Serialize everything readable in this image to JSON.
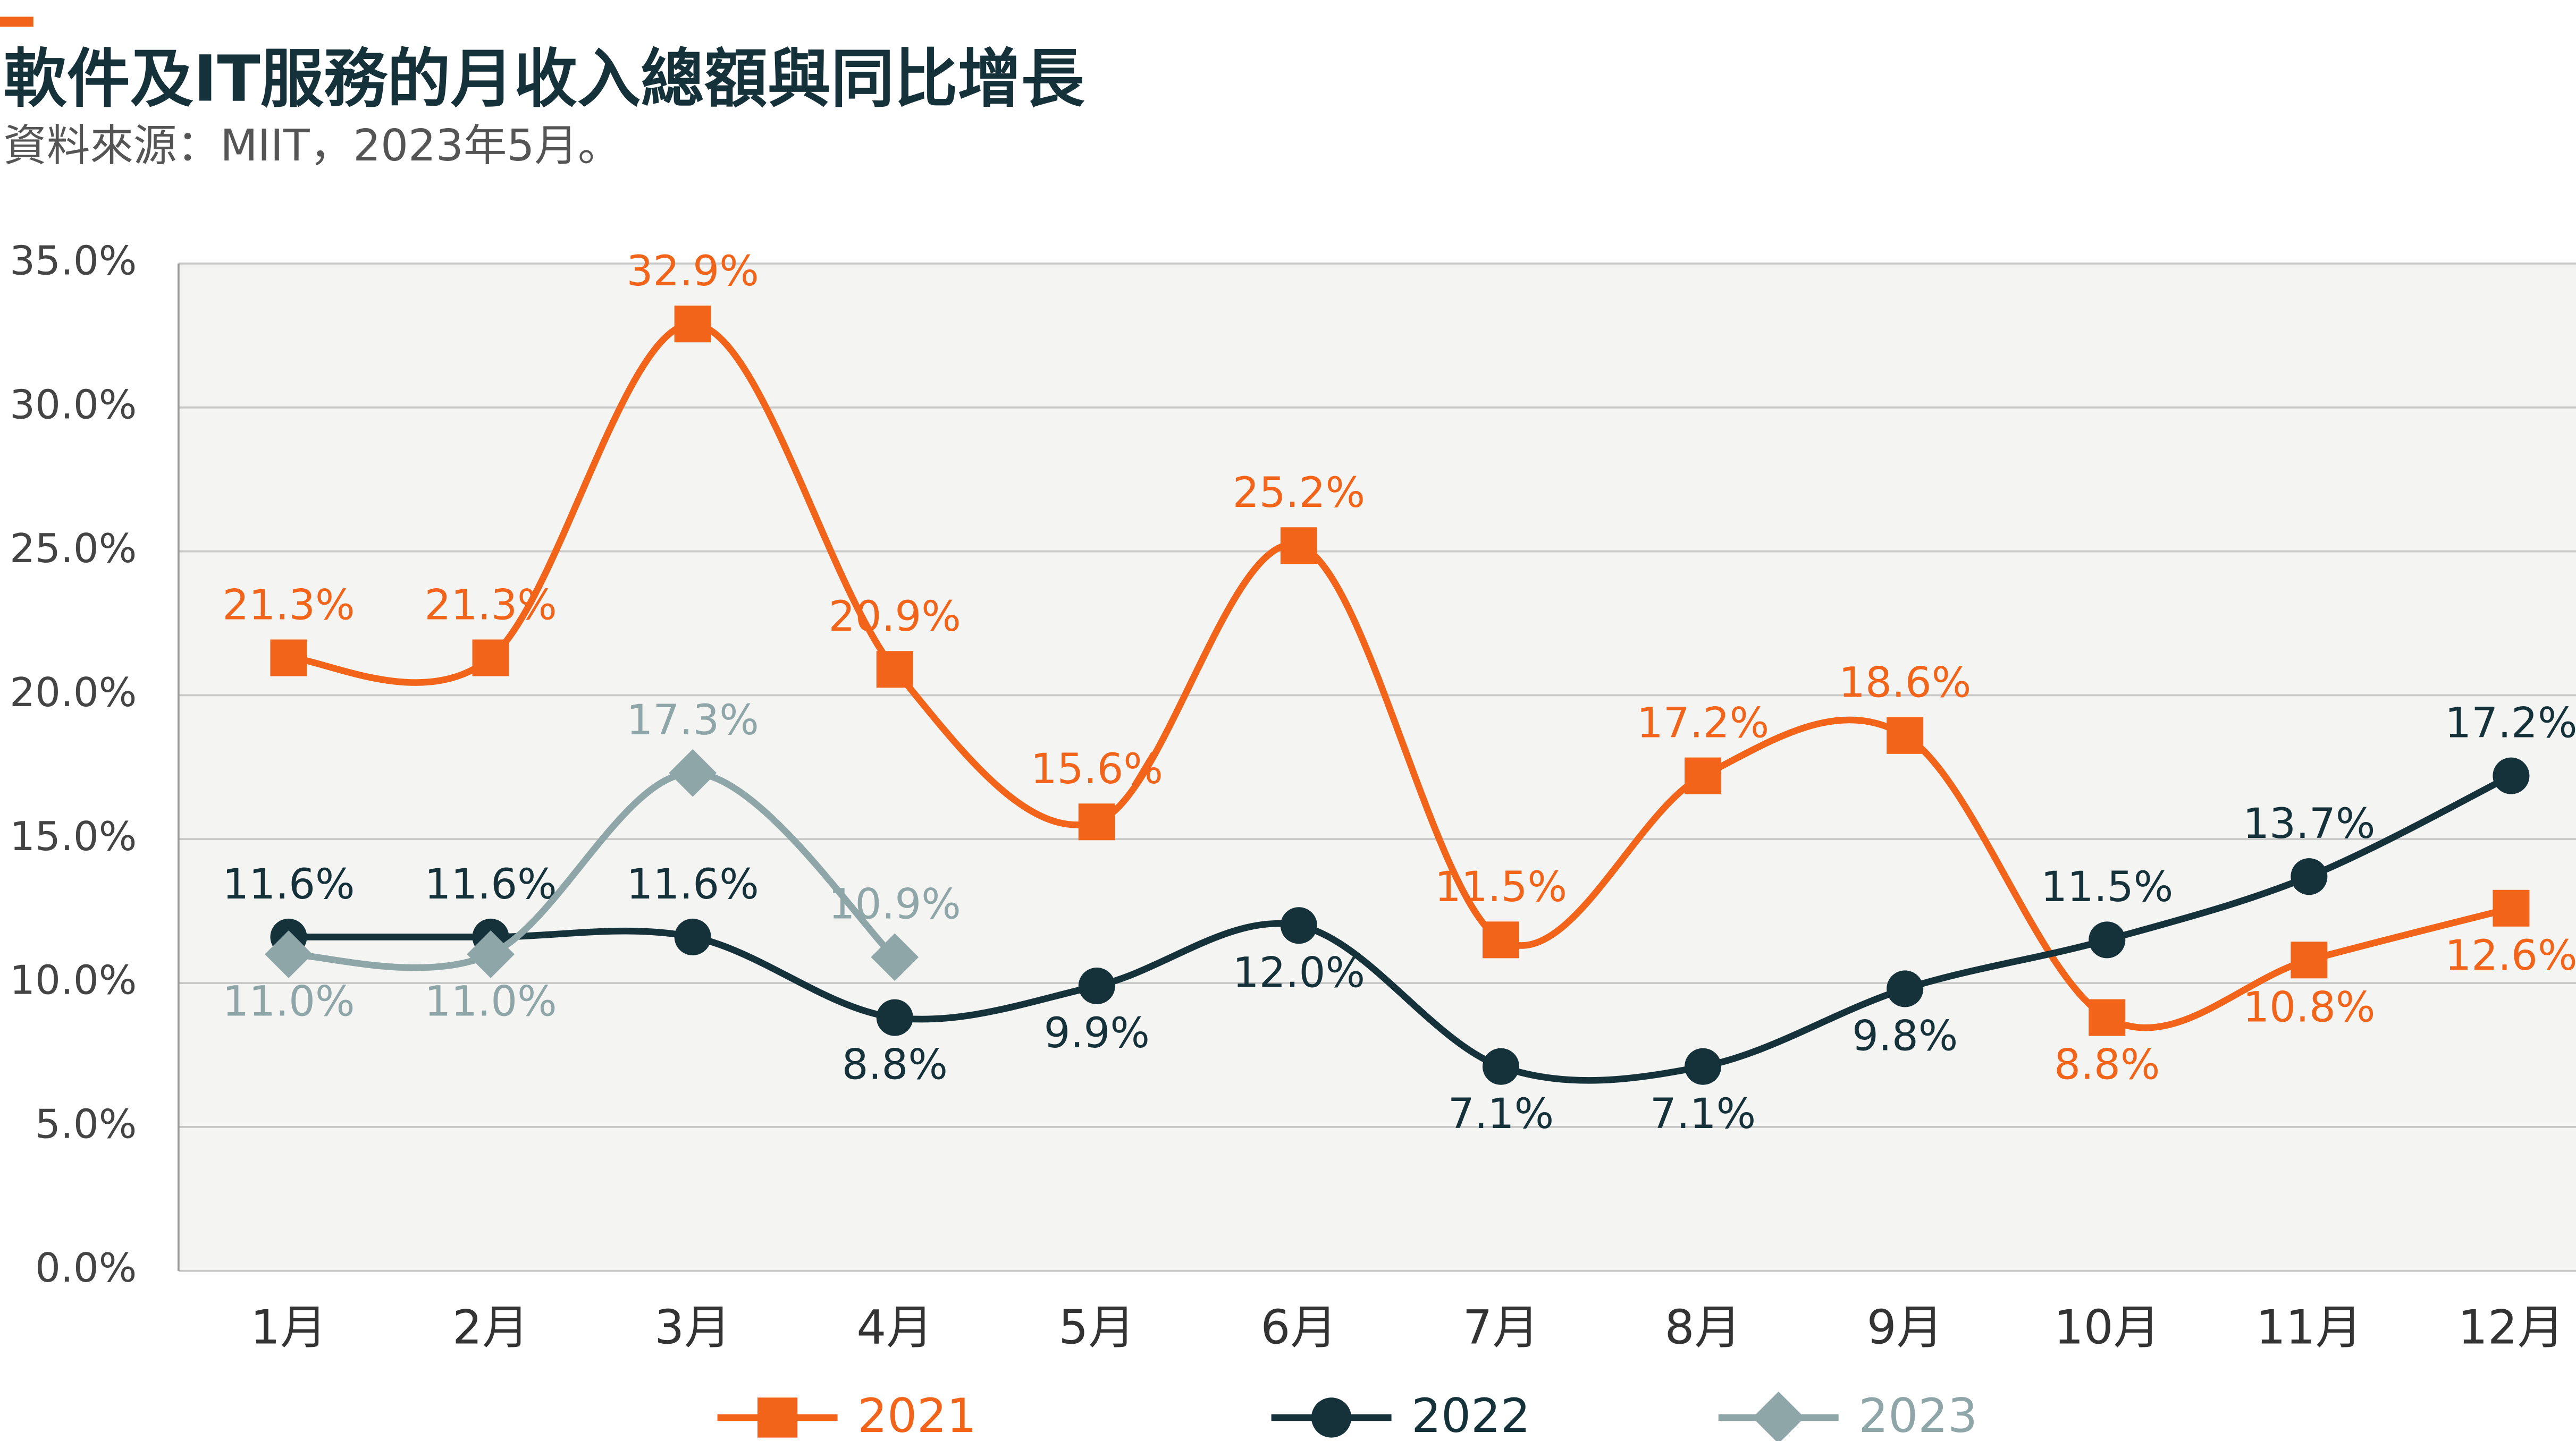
{
  "chart_data": {
    "type": "line",
    "title": "軟件及IT服務的月收入總額與同比增長",
    "subtitle": "資料來源：MIIT，2023年5月。",
    "categories": [
      "1月",
      "2月",
      "3月",
      "4月",
      "5月",
      "6月",
      "7月",
      "8月",
      "9月",
      "10月",
      "11月",
      "12月"
    ],
    "series": [
      {
        "name": "2021",
        "color": "#f26419",
        "marker": "square",
        "values": [
          21.3,
          21.3,
          32.9,
          20.9,
          15.6,
          25.2,
          11.5,
          17.2,
          18.6,
          8.8,
          10.8,
          12.6
        ],
        "value_labels": [
          "21.3%",
          "21.3%",
          "32.9%",
          "20.9%",
          "15.6%",
          "25.2%",
          "11.5%",
          "17.2%",
          "18.6%",
          "8.8%",
          "10.8%",
          "12.6%"
        ]
      },
      {
        "name": "2022",
        "color": "#15313a",
        "marker": "circle",
        "values": [
          11.6,
          11.6,
          11.6,
          8.8,
          9.9,
          12.0,
          7.1,
          7.1,
          9.8,
          11.5,
          13.7,
          17.2
        ],
        "value_labels": [
          "11.6%",
          "11.6%",
          "11.6%",
          "8.8%",
          "9.9%",
          "12.0%",
          "7.1%",
          "7.1%",
          "9.8%",
          "11.5%",
          "13.7%",
          "17.2%"
        ]
      },
      {
        "name": "2023",
        "color": "#8fa6a9",
        "marker": "diamond",
        "values": [
          11.0,
          11.0,
          17.3,
          10.9,
          null,
          null,
          null,
          null,
          null,
          null,
          null,
          null
        ],
        "value_labels": [
          "11.0%",
          "11.0%",
          "17.3%",
          "10.9%",
          null,
          null,
          null,
          null,
          null,
          null,
          null,
          null
        ]
      }
    ],
    "ylim": [
      0,
      35
    ],
    "yticks": [
      {
        "value": 0,
        "label": "0.0%"
      },
      {
        "value": 5,
        "label": "5.0%"
      },
      {
        "value": 10,
        "label": "10.0%"
      },
      {
        "value": 15,
        "label": "15.0%"
      },
      {
        "value": 20,
        "label": "20.0%"
      },
      {
        "value": 25,
        "label": "25.0%"
      },
      {
        "value": 30,
        "label": "30.0%"
      },
      {
        "value": 35,
        "label": "35.0%"
      }
    ],
    "grid": true,
    "legend": "bottom"
  }
}
